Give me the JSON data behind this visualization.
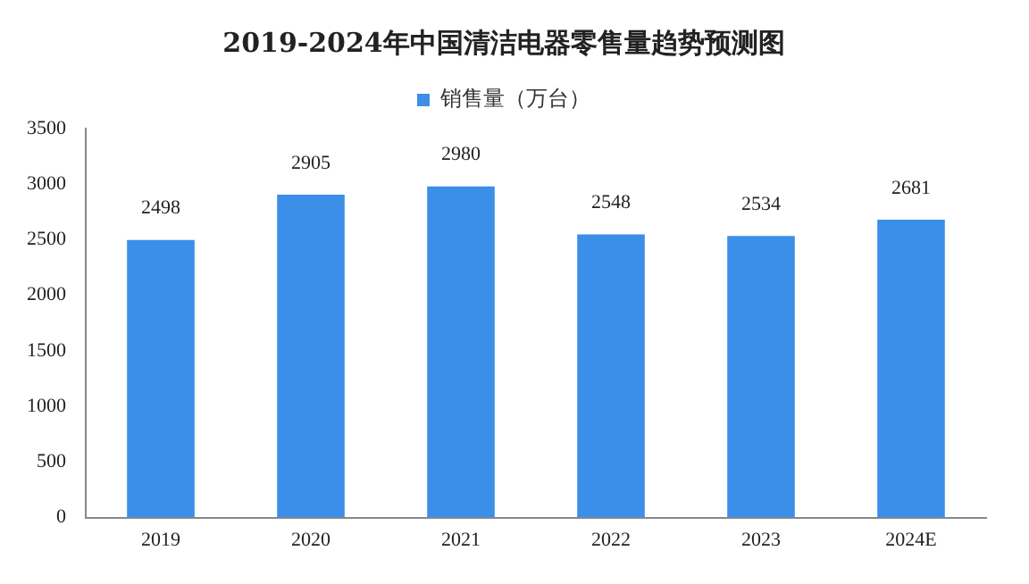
{
  "chart_data": {
    "type": "bar",
    "title": "2019-2024年中国清洁电器零售量趋势预测图",
    "categories": [
      "2019",
      "2020",
      "2021",
      "2022",
      "2023",
      "2024E"
    ],
    "series": [
      {
        "name": "销售量（万台）",
        "color": "#3b8fe8",
        "values": [
          2498,
          2905,
          2980,
          2548,
          2534,
          2681
        ]
      }
    ],
    "ylim": [
      0,
      3500
    ],
    "yticks": [
      0,
      500,
      1000,
      1500,
      2000,
      2500,
      3000,
      3500
    ],
    "grid": false,
    "legend": "top",
    "data_labels": true
  }
}
